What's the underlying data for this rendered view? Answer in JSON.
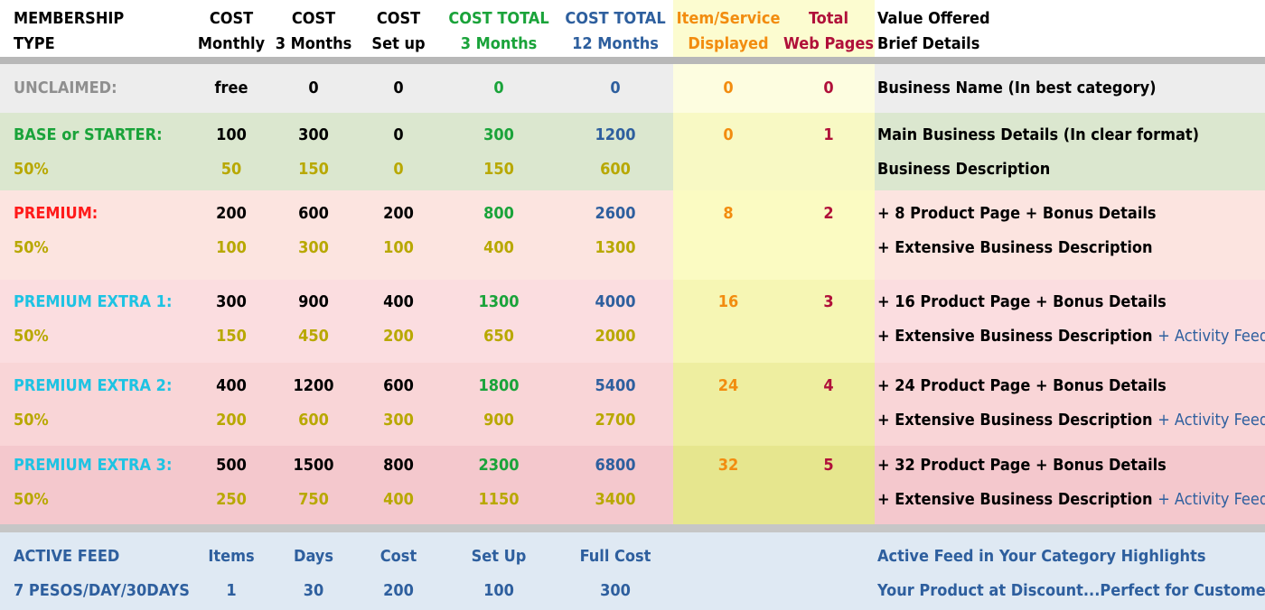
{
  "colors": {
    "black": "#000000",
    "green": "#1aa33a",
    "blue": "#2e5f9e",
    "orange": "#f28c0f",
    "crimson": "#b0103a",
    "olive": "#b8a800",
    "gray": "#8f8f8f",
    "red": "#ff1a1a",
    "cyan": "#1ec3e3",
    "feed_blue": "#2e5f9e"
  },
  "header": {
    "type_line1": "MEMBERSHIP",
    "type_line2": "TYPE",
    "monthly_line1": "COST",
    "monthly_line2": "Monthly",
    "three_line1": "COST",
    "three_line2": "3 Months",
    "setup_line1": "COST",
    "setup_line2": "Set up",
    "total3_line1": "COST TOTAL",
    "total3_line2": "3 Months",
    "total12_line1": "COST TOTAL",
    "total12_line2": "12 Months",
    "items_line1": "Item/Service",
    "items_line2": "Displayed",
    "pages_line1": "Total",
    "pages_line2": "Web Pages",
    "value_line1": "Value Offered",
    "value_line2": "Brief Details"
  },
  "unclaimed": {
    "name": "UNCLAIMED:",
    "monthly": "free",
    "three": "0",
    "setup": "0",
    "total3": "0",
    "total12": "0",
    "items": "0",
    "pages": "0",
    "value1": "Business Name (In best category)"
  },
  "base": {
    "name": "BASE or STARTER:",
    "monthly": "100",
    "three": "300",
    "setup": "0",
    "total3": "300",
    "total12": "1200",
    "items": "0",
    "pages": "1",
    "value1": "Main Business Details (In clear format)",
    "discount": "50%",
    "d_monthly": "50",
    "d_three": "150",
    "d_setup": "0",
    "d_total3": "150",
    "d_total12": "600",
    "value2": "Business Description"
  },
  "premium": {
    "name": "PREMIUM:",
    "monthly": "200",
    "three": "600",
    "setup": "200",
    "total3": "800",
    "total12": "2600",
    "items": "8",
    "pages": "2",
    "value1": "+ 8 Product Page + Bonus Details",
    "discount": "50%",
    "d_monthly": "100",
    "d_three": "300",
    "d_setup": "100",
    "d_total3": "400",
    "d_total12": "1300",
    "value2": "+ Extensive Business Description"
  },
  "extra1": {
    "name": "PREMIUM EXTRA 1:",
    "monthly": "300",
    "three": "900",
    "setup": "400",
    "total3": "1300",
    "total12": "4000",
    "items": "16",
    "pages": "3",
    "value1": "+ 16 Product Page + Bonus Details",
    "discount": "50%",
    "d_monthly": "150",
    "d_three": "450",
    "d_setup": "200",
    "d_total3": "650",
    "d_total12": "2000",
    "value2": "+ Extensive Business Description",
    "feed": "+ Activity Feed"
  },
  "extra2": {
    "name": "PREMIUM EXTRA 2:",
    "monthly": "400",
    "three": "1200",
    "setup": "600",
    "total3": "1800",
    "total12": "5400",
    "items": "24",
    "pages": "4",
    "value1": "+ 24 Product Page + Bonus Details",
    "discount": "50%",
    "d_monthly": "200",
    "d_three": "600",
    "d_setup": "300",
    "d_total3": "900",
    "d_total12": "2700",
    "value2": "+ Extensive Business Description",
    "feed": "+ Activity Feed"
  },
  "extra3": {
    "name": "PREMIUM EXTRA 3:",
    "monthly": "500",
    "three": "1500",
    "setup": "800",
    "total3": "2300",
    "total12": "6800",
    "items": "32",
    "pages": "5",
    "value1": "+ 32 Product Page + Bonus Details",
    "discount": "50%",
    "d_monthly": "250",
    "d_three": "750",
    "d_setup": "400",
    "d_total3": "1150",
    "d_total12": "3400",
    "value2": "+ Extensive Business Description",
    "feed": "+ Activity Feed"
  },
  "feed": {
    "title": "ACTIVE FEED",
    "h_items": "Items",
    "h_days": "Days",
    "h_cost": "Cost",
    "h_setup": "Set Up",
    "h_full": "Full Cost",
    "desc1": "Active Feed in Your Category Highlights",
    "rate": "7 PESOS/DAY/30DAYS",
    "items": "1",
    "days": "30",
    "cost": "200",
    "setup": "100",
    "full": "300",
    "desc2": "Your Product at Discount...Perfect for Customers"
  }
}
